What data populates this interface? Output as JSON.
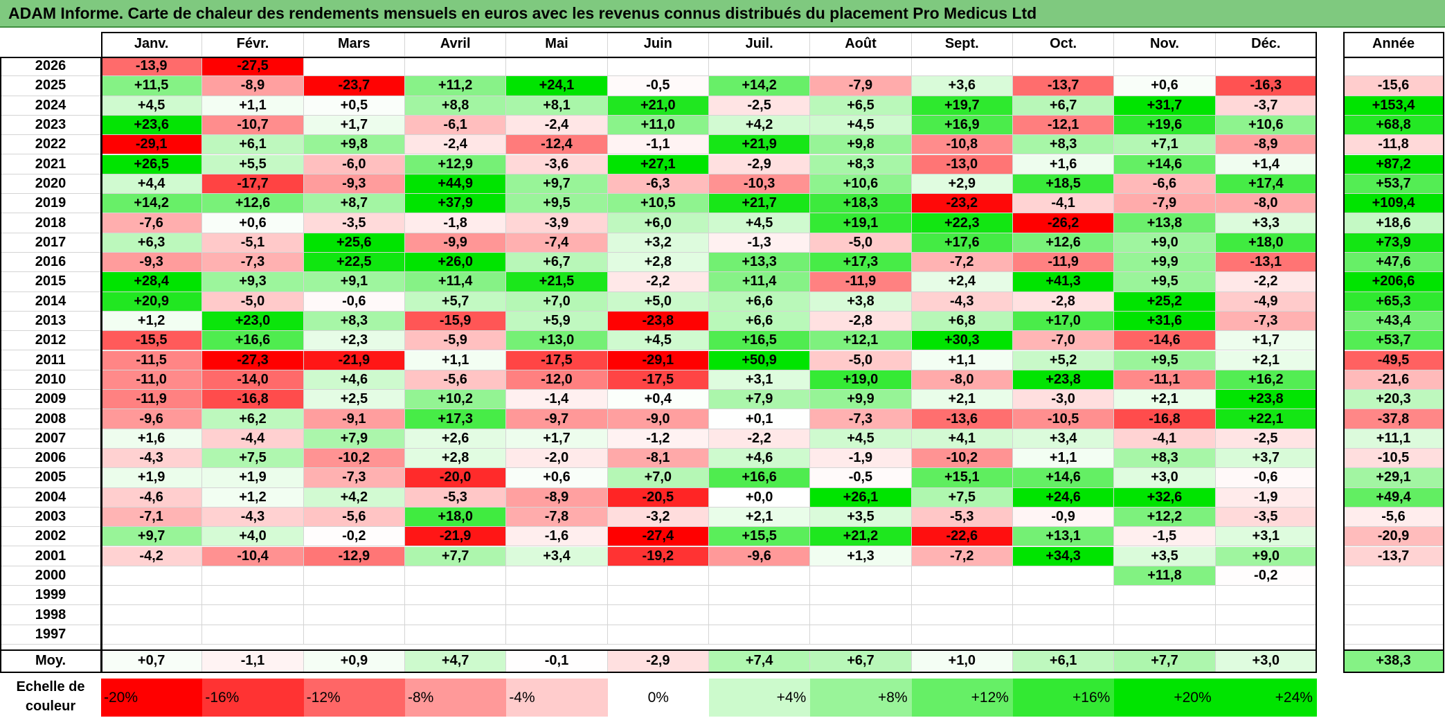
{
  "title": "ADAM Informe. Carte de chaleur des rendements mensuels en euros avec les revenus connus distribués du placement Pro Medicus Ltd",
  "annual_header": "Année",
  "average_label": "Moy.",
  "scale_label": "Echelle de couleur",
  "colors": {
    "strong_red": "#ff0000",
    "strong_green": "#00e400",
    "neutral": "#ffffff",
    "title_bg": "#7fc97f"
  },
  "chart_data": {
    "type": "heatmap",
    "title": "ADAM Informe. Carte de chaleur des rendements mensuels en euros avec les revenus connus distribués du placement Pro Medicus Ltd",
    "months": [
      "Janv.",
      "Févr.",
      "Mars",
      "Avril",
      "Mai",
      "Juin",
      "Juil.",
      "Août",
      "Sept.",
      "Oct.",
      "Nov.",
      "Déc."
    ],
    "rows": [
      {
        "year": "2026",
        "values": [
          "-13,9",
          "-27,5",
          "",
          "",
          "",
          "",
          "",
          "",
          "",
          "",
          "",
          ""
        ],
        "annual": ""
      },
      {
        "year": "2025",
        "values": [
          "+11,5",
          "-8,9",
          "-23,7",
          "+11,2",
          "+24,1",
          "-0,5",
          "+14,2",
          "-7,9",
          "+3,6",
          "-13,7",
          "+0,6",
          "-16,3"
        ],
        "annual": "-15,6"
      },
      {
        "year": "2024",
        "values": [
          "+4,5",
          "+1,1",
          "+0,5",
          "+8,8",
          "+8,1",
          "+21,0",
          "-2,5",
          "+6,5",
          "+19,7",
          "+6,7",
          "+31,7",
          "-3,7"
        ],
        "annual": "+153,4"
      },
      {
        "year": "2023",
        "values": [
          "+23,6",
          "-10,7",
          "+1,7",
          "-6,1",
          "-2,4",
          "+11,0",
          "+4,2",
          "+4,5",
          "+16,9",
          "-12,1",
          "+19,6",
          "+10,6"
        ],
        "annual": "+68,8"
      },
      {
        "year": "2022",
        "values": [
          "-29,1",
          "+6,1",
          "+9,8",
          "-2,4",
          "-12,4",
          "-1,1",
          "+21,9",
          "+9,8",
          "-10,8",
          "+8,3",
          "+7,1",
          "-8,9"
        ],
        "annual": "-11,8"
      },
      {
        "year": "2021",
        "values": [
          "+26,5",
          "+5,5",
          "-6,0",
          "+12,9",
          "-3,6",
          "+27,1",
          "-2,9",
          "+8,3",
          "-13,0",
          "+1,6",
          "+14,6",
          "+1,4"
        ],
        "annual": "+87,2"
      },
      {
        "year": "2020",
        "values": [
          "+4,4",
          "-17,7",
          "-9,3",
          "+44,9",
          "+9,7",
          "-6,3",
          "-10,3",
          "+10,6",
          "+2,9",
          "+18,5",
          "-6,6",
          "+17,4"
        ],
        "annual": "+53,7"
      },
      {
        "year": "2019",
        "values": [
          "+14,2",
          "+12,6",
          "+8,7",
          "+37,9",
          "+9,5",
          "+10,5",
          "+21,7",
          "+18,3",
          "-23,2",
          "-4,1",
          "-7,9",
          "-8,0"
        ],
        "annual": "+109,4"
      },
      {
        "year": "2018",
        "values": [
          "-7,6",
          "+0,6",
          "-3,5",
          "-1,8",
          "-3,9",
          "+6,0",
          "+4,5",
          "+19,1",
          "+22,3",
          "-26,2",
          "+13,8",
          "+3,3"
        ],
        "annual": "+18,6"
      },
      {
        "year": "2017",
        "values": [
          "+6,3",
          "-5,1",
          "+25,6",
          "-9,9",
          "-7,4",
          "+3,2",
          "-1,3",
          "-5,0",
          "+17,6",
          "+12,6",
          "+9,0",
          "+18,0"
        ],
        "annual": "+73,9"
      },
      {
        "year": "2016",
        "values": [
          "-9,3",
          "-7,3",
          "+22,5",
          "+26,0",
          "+6,7",
          "+2,8",
          "+13,3",
          "+17,3",
          "-7,2",
          "-11,9",
          "+9,9",
          "-13,1"
        ],
        "annual": "+47,6"
      },
      {
        "year": "2015",
        "values": [
          "+28,4",
          "+9,3",
          "+9,1",
          "+11,4",
          "+21,5",
          "-2,2",
          "+11,4",
          "-11,9",
          "+2,4",
          "+41,3",
          "+9,5",
          "-2,2"
        ],
        "annual": "+206,6"
      },
      {
        "year": "2014",
        "values": [
          "+20,9",
          "-5,0",
          "-0,6",
          "+5,7",
          "+7,0",
          "+5,0",
          "+6,6",
          "+3,8",
          "-4,3",
          "-2,8",
          "+25,2",
          "-4,9"
        ],
        "annual": "+65,3"
      },
      {
        "year": "2013",
        "values": [
          "+1,2",
          "+23,0",
          "+8,3",
          "-15,9",
          "+5,9",
          "-23,8",
          "+6,6",
          "-2,8",
          "+6,8",
          "+17,0",
          "+31,6",
          "-7,3"
        ],
        "annual": "+43,4"
      },
      {
        "year": "2012",
        "values": [
          "-15,5",
          "+16,6",
          "+2,3",
          "-5,9",
          "+13,0",
          "+4,5",
          "+16,5",
          "+12,1",
          "+30,3",
          "-7,0",
          "-14,6",
          "+1,7"
        ],
        "annual": "+53,7"
      },
      {
        "year": "2011",
        "values": [
          "-11,5",
          "-27,3",
          "-21,9",
          "+1,1",
          "-17,5",
          "-29,1",
          "+50,9",
          "-5,0",
          "+1,1",
          "+5,2",
          "+9,5",
          "+2,1"
        ],
        "annual": "-49,5"
      },
      {
        "year": "2010",
        "values": [
          "-11,0",
          "-14,0",
          "+4,6",
          "-5,6",
          "-12,0",
          "-17,5",
          "+3,1",
          "+19,0",
          "-8,0",
          "+23,8",
          "-11,1",
          "+16,2"
        ],
        "annual": "-21,6"
      },
      {
        "year": "2009",
        "values": [
          "-11,9",
          "-16,8",
          "+2,5",
          "+10,2",
          "-1,4",
          "+0,4",
          "+7,9",
          "+9,9",
          "+2,1",
          "-3,0",
          "+2,1",
          "+23,8"
        ],
        "annual": "+20,3"
      },
      {
        "year": "2008",
        "values": [
          "-9,6",
          "+6,2",
          "-9,1",
          "+17,3",
          "-9,7",
          "-9,0",
          "+0,1",
          "-7,3",
          "-13,6",
          "-10,5",
          "-16,8",
          "+22,1"
        ],
        "annual": "-37,8"
      },
      {
        "year": "2007",
        "values": [
          "+1,6",
          "-4,4",
          "+7,9",
          "+2,6",
          "+1,7",
          "-1,2",
          "-2,2",
          "+4,5",
          "+4,1",
          "+3,4",
          "-4,1",
          "-2,5"
        ],
        "annual": "+11,1"
      },
      {
        "year": "2006",
        "values": [
          "-4,3",
          "+7,5",
          "-10,2",
          "+2,8",
          "-2,0",
          "-8,1",
          "+4,6",
          "-1,9",
          "-10,2",
          "+1,1",
          "+8,3",
          "+3,7"
        ],
        "annual": "-10,5"
      },
      {
        "year": "2005",
        "values": [
          "+1,9",
          "+1,9",
          "-7,3",
          "-20,0",
          "+0,6",
          "+7,0",
          "+16,6",
          "-0,5",
          "+15,1",
          "+14,6",
          "+3,0",
          "-0,6"
        ],
        "annual": "+29,1"
      },
      {
        "year": "2004",
        "values": [
          "-4,6",
          "+1,2",
          "+4,2",
          "-5,3",
          "-8,9",
          "-20,5",
          "+0,0",
          "+26,1",
          "+7,5",
          "+24,6",
          "+32,6",
          "-1,9"
        ],
        "annual": "+49,4"
      },
      {
        "year": "2003",
        "values": [
          "-7,1",
          "-4,3",
          "-5,6",
          "+18,0",
          "-7,8",
          "-3,2",
          "+2,1",
          "+3,5",
          "-5,3",
          "-0,9",
          "+12,2",
          "-3,5"
        ],
        "annual": "-5,6"
      },
      {
        "year": "2002",
        "values": [
          "+9,7",
          "+4,0",
          "-0,2",
          "-21,9",
          "-1,6",
          "-27,4",
          "+15,5",
          "+21,2",
          "-22,6",
          "+13,1",
          "-1,5",
          "+3,1"
        ],
        "annual": "-20,9"
      },
      {
        "year": "2001",
        "values": [
          "-4,2",
          "-10,4",
          "-12,9",
          "+7,7",
          "+3,4",
          "-19,2",
          "-9,6",
          "+1,3",
          "-7,2",
          "+34,3",
          "+3,5",
          "+9,0"
        ],
        "annual": "-13,7"
      },
      {
        "year": "2000",
        "values": [
          "",
          "",
          "",
          "",
          "",
          "",
          "",
          "",
          "",
          "",
          "+11,8",
          "-0,2"
        ],
        "annual": ""
      },
      {
        "year": "1999",
        "values": [
          "",
          "",
          "",
          "",
          "",
          "",
          "",
          "",
          "",
          "",
          "",
          ""
        ],
        "annual": ""
      },
      {
        "year": "1998",
        "values": [
          "",
          "",
          "",
          "",
          "",
          "",
          "",
          "",
          "",
          "",
          "",
          ""
        ],
        "annual": ""
      },
      {
        "year": "1997",
        "values": [
          "",
          "",
          "",
          "",
          "",
          "",
          "",
          "",
          "",
          "",
          "",
          ""
        ],
        "annual": ""
      }
    ],
    "averages": [
      "+0,7",
      "-1,1",
      "+0,9",
      "+4,7",
      "-0,1",
      "-2,9",
      "+7,4",
      "+6,7",
      "+1,0",
      "+6,1",
      "+7,7",
      "+3,0"
    ],
    "average_annual": "+38,3",
    "color_scale": [
      "-20%",
      "-16%",
      "-12%",
      "-8%",
      "-4%",
      "0%",
      "+4%",
      "+8%",
      "+12%",
      "+16%",
      "+20%",
      "+24%"
    ],
    "color_scale_values": [
      -20,
      -16,
      -12,
      -8,
      -4,
      0,
      4,
      8,
      12,
      16,
      20,
      24
    ]
  }
}
